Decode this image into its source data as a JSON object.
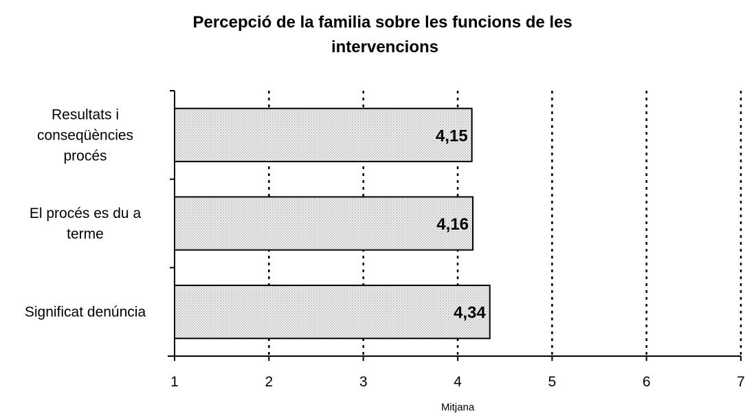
{
  "chart_data": {
    "type": "bar",
    "orientation": "horizontal",
    "title_lines": [
      "Percepció de la familia sobre les funcions de les",
      "intervencions"
    ],
    "xlabel": "Mitjana",
    "ylabel": "",
    "xlim": [
      1,
      7
    ],
    "x_ticks": [
      "1",
      "2",
      "3",
      "4",
      "5",
      "6",
      "7"
    ],
    "categories": [
      [
        "Resultats i",
        "conseqüències",
        "procés"
      ],
      [
        "El procés es du a",
        "terme"
      ],
      [
        "Significat denúncia"
      ]
    ],
    "values": [
      4.15,
      4.16,
      4.34
    ],
    "value_labels": [
      "4,15",
      "4,16",
      "4,34"
    ],
    "grid": "vertical dotted",
    "bar_fill": "light dotted pattern",
    "colors": {
      "bar_fill": "#eeeeee",
      "bar_dots": "#9a9a9a",
      "bar_stroke": "#000000",
      "grid": "#000000",
      "axis": "#000000",
      "text": "#000000"
    }
  }
}
